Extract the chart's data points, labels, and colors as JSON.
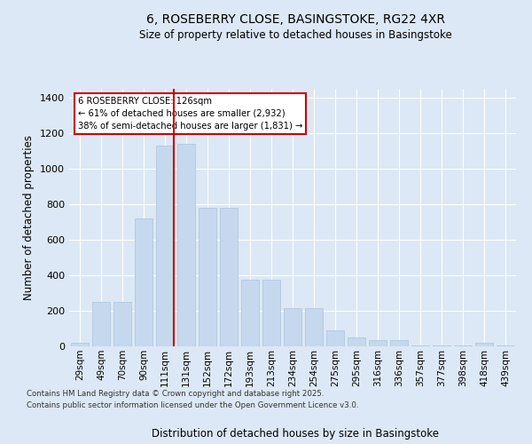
{
  "title": "6, ROSEBERRY CLOSE, BASINGSTOKE, RG22 4XR",
  "subtitle": "Size of property relative to detached houses in Basingstoke",
  "xlabel": "Distribution of detached houses by size in Basingstoke",
  "ylabel": "Number of detached properties",
  "categories": [
    "29sqm",
    "49sqm",
    "70sqm",
    "90sqm",
    "111sqm",
    "131sqm",
    "152sqm",
    "172sqm",
    "193sqm",
    "213sqm",
    "234sqm",
    "254sqm",
    "275sqm",
    "295sqm",
    "316sqm",
    "336sqm",
    "357sqm",
    "377sqm",
    "398sqm",
    "418sqm",
    "439sqm"
  ],
  "values": [
    22,
    248,
    248,
    718,
    1130,
    1140,
    780,
    780,
    375,
    375,
    215,
    215,
    90,
    48,
    33,
    33,
    5,
    5,
    5,
    18,
    5
  ],
  "bar_color": "#c5d8ed",
  "bar_edgecolor": "#a8c4dc",
  "vline_color": "#cc0000",
  "vline_pos": 4.43,
  "annotation_text": "6 ROSEBERRY CLOSE: 126sqm\n← 61% of detached houses are smaller (2,932)\n38% of semi-detached houses are larger (1,831) →",
  "annotation_box_facecolor": "#ffffff",
  "annotation_box_edgecolor": "#cc0000",
  "ylim": [
    0,
    1450
  ],
  "yticks": [
    0,
    200,
    400,
    600,
    800,
    1000,
    1200,
    1400
  ],
  "grid_color": "#ffffff",
  "bg_color": "#dce8f5",
  "footer1": "Contains HM Land Registry data © Crown copyright and database right 2025.",
  "footer2": "Contains public sector information licensed under the Open Government Licence v3.0."
}
